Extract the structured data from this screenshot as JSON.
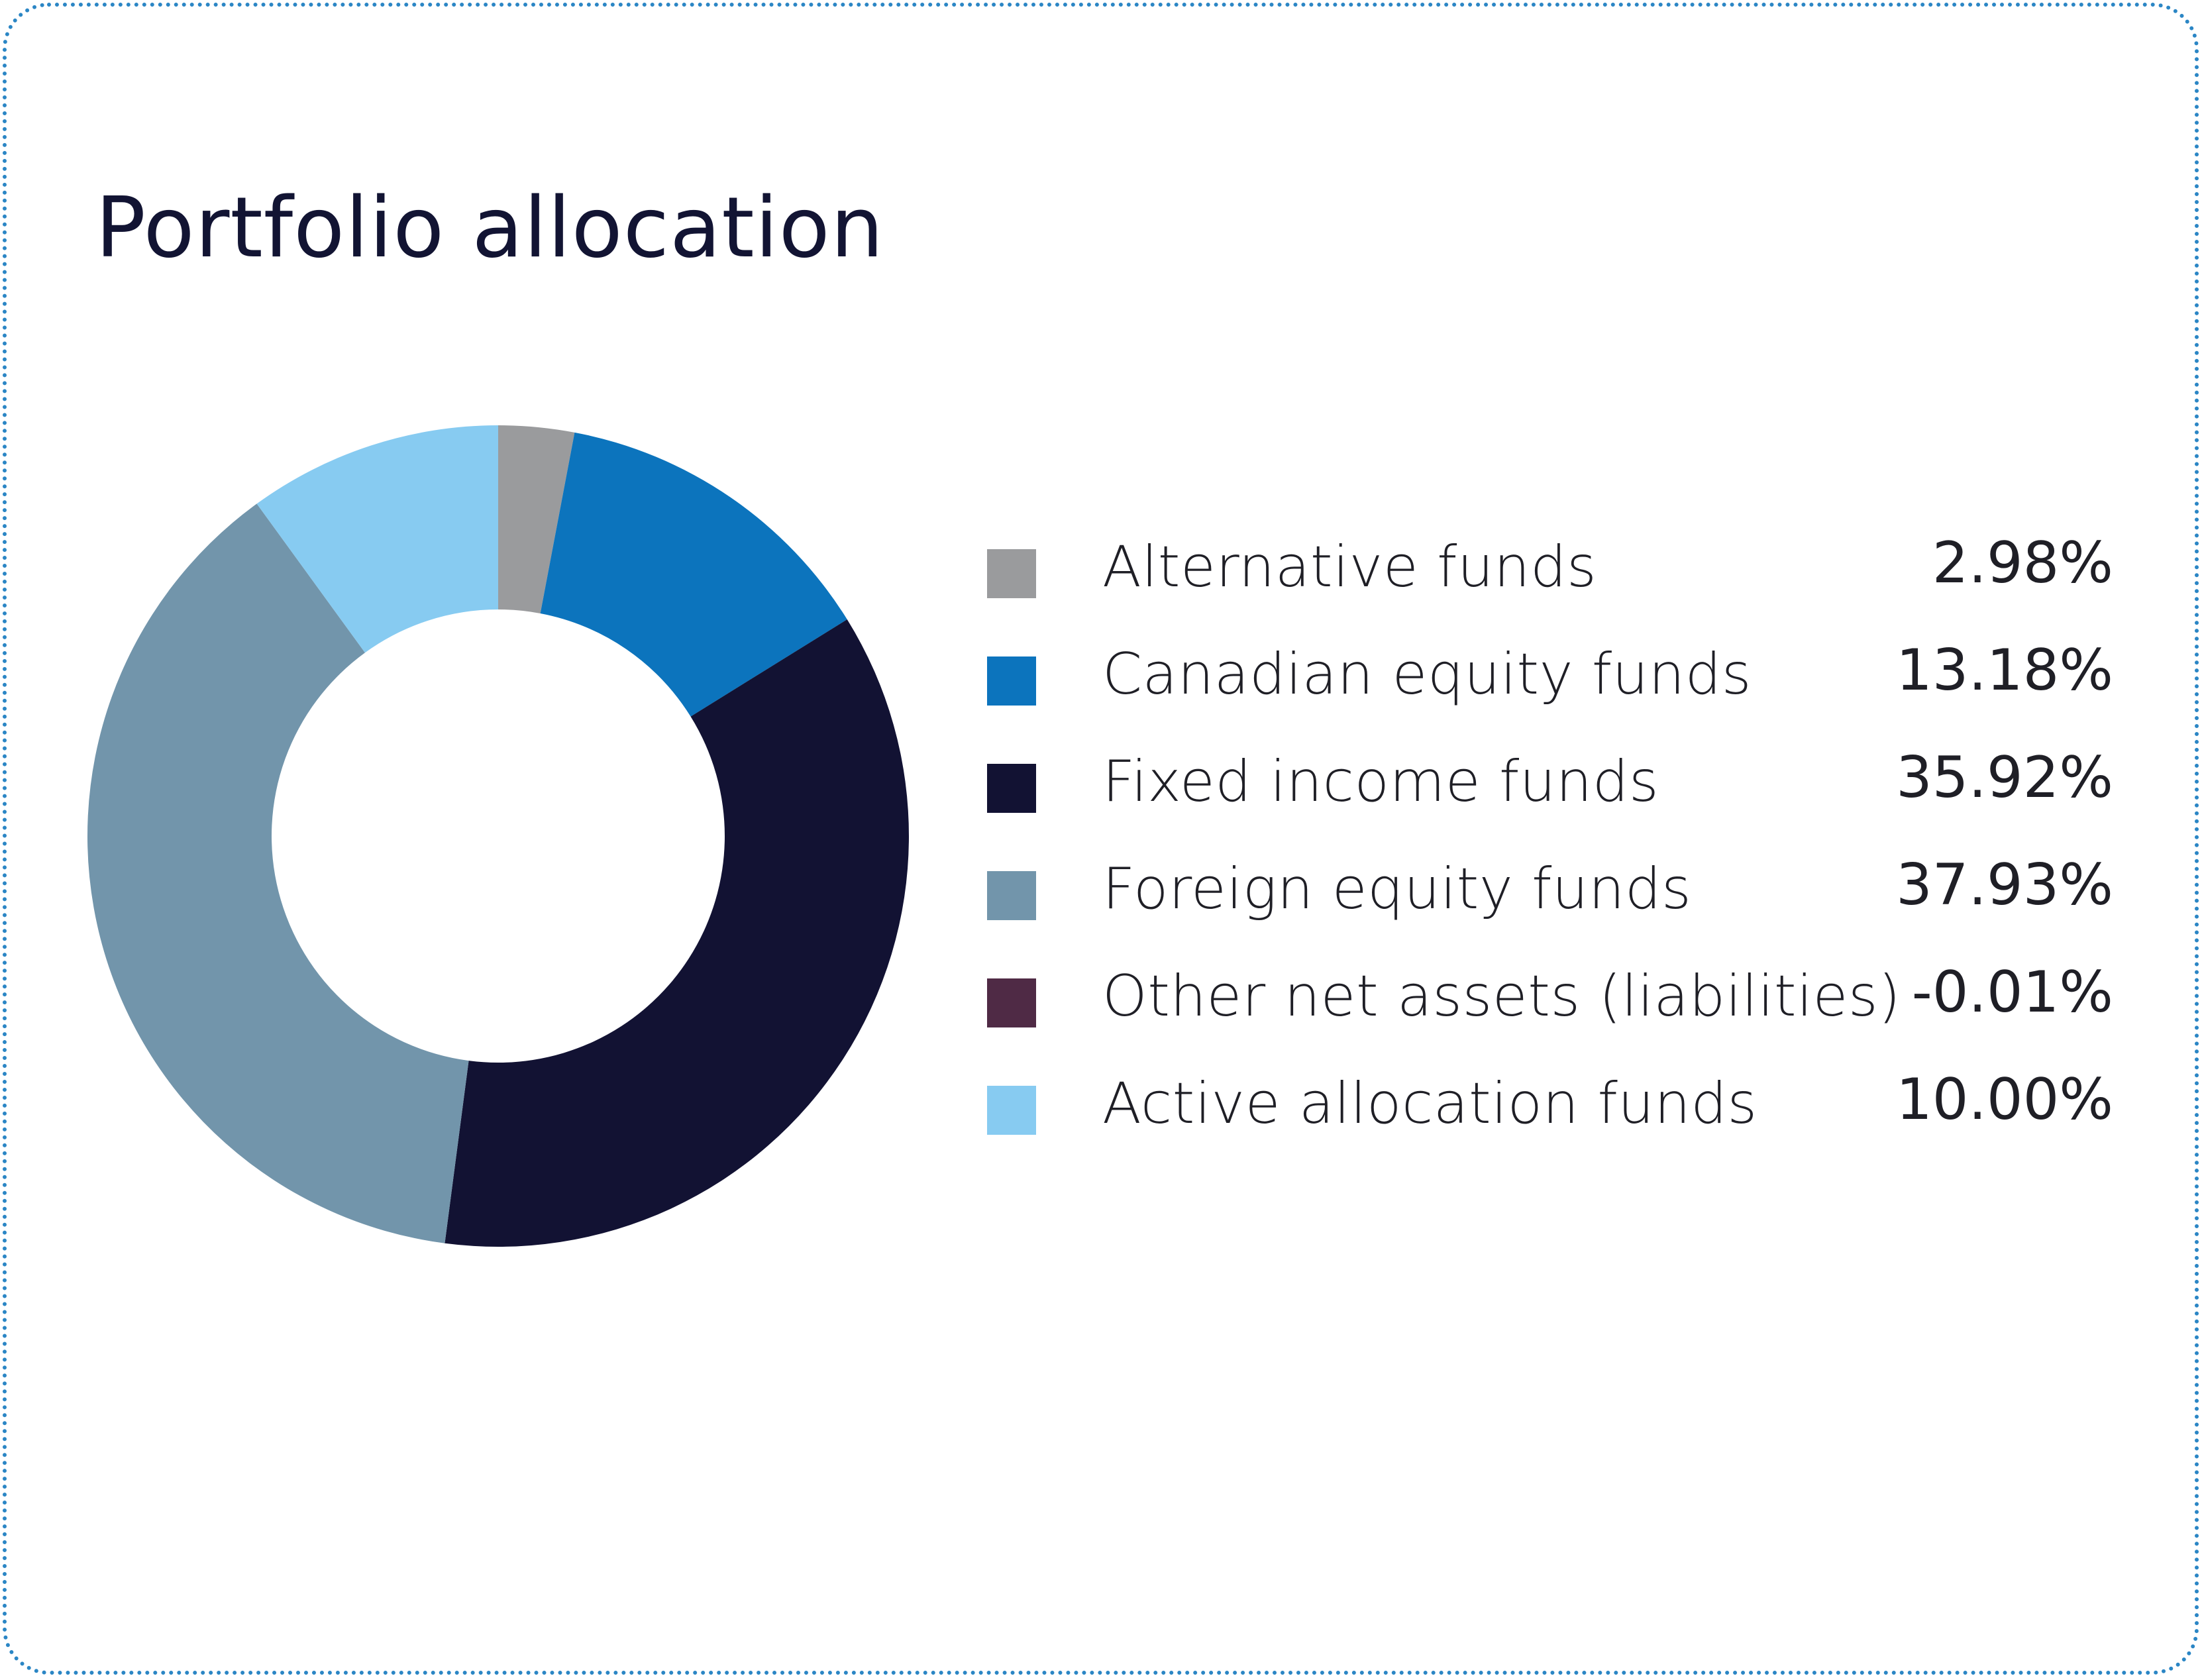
{
  "chart_data": {
    "type": "pie",
    "title": "Portfolio allocation",
    "legend_position": "right",
    "series": [
      {
        "name": "",
        "slices": [
          {
            "label": "Alternative funds",
            "value": 2.98,
            "display": "2.98%",
            "color": "#9a9b9d"
          },
          {
            "label": "Canadian equity funds",
            "value": 13.18,
            "display": "13.18%",
            "color": "#0c74bd"
          },
          {
            "label": "Fixed income funds",
            "value": 35.92,
            "display": "35.92%",
            "color": "#121233"
          },
          {
            "label": "Foreign equity funds",
            "value": 37.93,
            "display": "37.93%",
            "color": "#7295ab"
          },
          {
            "label": "Other net assets (liabilities)",
            "value": -0.01,
            "display": "-0.01%",
            "color": "#4f2a45"
          },
          {
            "label": "Active allocation funds",
            "value": 10.0,
            "display": "10.00%",
            "color": "#87cbf1"
          }
        ]
      }
    ]
  }
}
